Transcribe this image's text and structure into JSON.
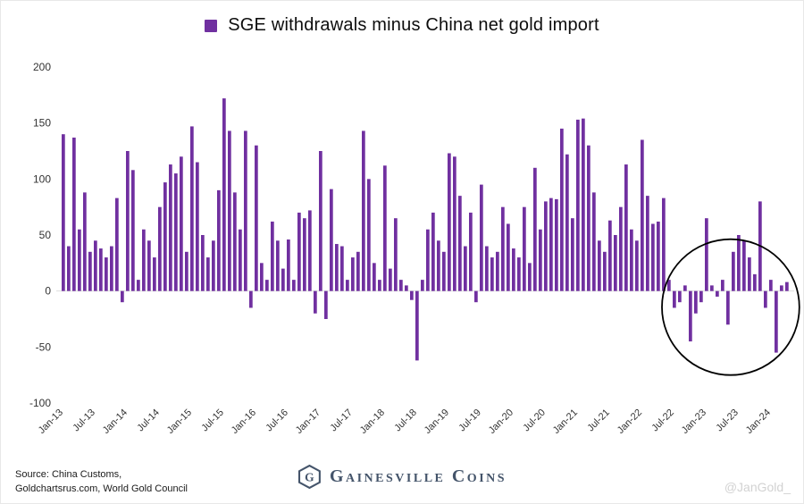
{
  "title": "SGE withdrawals minus China net gold import",
  "legend": {
    "marker_color": "#7030A0"
  },
  "colors": {
    "bar": "#7030A0",
    "axis_text": "#333333",
    "baseline": "#dddddd",
    "annotation": "#000000",
    "brand": "#44546A"
  },
  "chart_data": {
    "type": "bar",
    "title": "SGE withdrawals minus China net gold import",
    "start_month": "Jan-13",
    "frequency": "monthly",
    "values": [
      140,
      40,
      137,
      55,
      88,
      35,
      45,
      38,
      30,
      40,
      83,
      -10,
      125,
      108,
      10,
      55,
      45,
      30,
      75,
      97,
      113,
      105,
      120,
      35,
      147,
      115,
      50,
      30,
      45,
      90,
      172,
      143,
      88,
      55,
      143,
      -15,
      130,
      25,
      10,
      62,
      45,
      20,
      46,
      10,
      70,
      65,
      72,
      -20,
      125,
      -25,
      91,
      42,
      40,
      10,
      30,
      35,
      143,
      100,
      25,
      10,
      112,
      20,
      65,
      10,
      5,
      -8,
      -62,
      10,
      55,
      70,
      45,
      35,
      123,
      120,
      85,
      40,
      70,
      -10,
      95,
      40,
      30,
      35,
      75,
      60,
      38,
      30,
      75,
      25,
      110,
      55,
      80,
      83,
      82,
      145,
      122,
      65,
      153,
      154,
      130,
      88,
      45,
      35,
      63,
      50,
      75,
      113,
      55,
      45,
      135,
      85,
      60,
      62,
      83,
      10,
      -15,
      -10,
      5,
      -45,
      -20,
      -10,
      65,
      5,
      -5,
      10,
      -30,
      35,
      50,
      45,
      30,
      15,
      80,
      -15,
      10,
      -55,
      5,
      8
    ],
    "x_tick_labels": [
      "Jan-13",
      "Jul-13",
      "Jan-14",
      "Jul-14",
      "Jan-15",
      "Jul-15",
      "Jan-16",
      "Jul-16",
      "Jan-17",
      "Jul-17",
      "Jan-18",
      "Jul-18",
      "Jan-19",
      "Jul-19",
      "Jan-20",
      "Jul-20",
      "Jan-21",
      "Jul-21",
      "Jan-22",
      "Jul-22",
      "Jan-23",
      "Jul-23",
      "Jan-24"
    ],
    "x_tick_every": 6,
    "y_ticks": [
      200,
      150,
      100,
      50,
      0,
      -50,
      -100
    ],
    "ylim": [
      -100,
      200
    ],
    "grid": false,
    "legend_position": "top-center",
    "annotation": {
      "shape": "ellipse",
      "from_index": 114,
      "to_index": 135
    }
  },
  "footer": {
    "source_line1": "Source: China Customs,",
    "source_line2": "Goldchartsrus.com, World Gold Council",
    "brand": "Gainesville Coins",
    "brand_monogram": "G",
    "watermark": "@JanGold_"
  }
}
